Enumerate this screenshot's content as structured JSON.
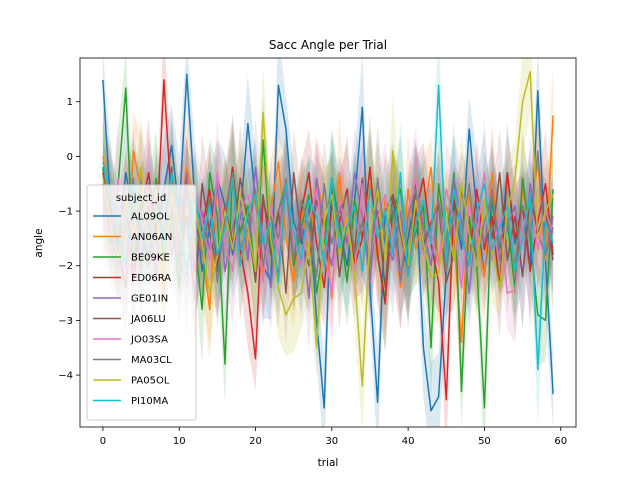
{
  "chart_data": {
    "type": "line",
    "title": "Sacc Angle per Trial",
    "xlabel": "trial",
    "ylabel": "angle",
    "xlim": [
      -3,
      62
    ],
    "ylim": [
      -4.95,
      1.8
    ],
    "xticks": [
      0,
      10,
      20,
      30,
      40,
      50,
      60
    ],
    "yticks": [
      -4,
      -3,
      -2,
      -1,
      0,
      1
    ],
    "grid": false,
    "legend": {
      "title": "subject_id",
      "placement": "center-left"
    },
    "confidence_bands": true,
    "series": [
      {
        "name": "AL09OL",
        "color": "#1f77b4",
        "values": [
          1.4,
          -0.9,
          -1.6,
          -0.3,
          -1.1,
          -2.0,
          -0.5,
          -1.4,
          -0.6,
          0.2,
          -1.0,
          1.5,
          -0.7,
          -2.1,
          -1.3,
          -0.4,
          -0.9,
          -1.8,
          -1.1,
          0.6,
          -0.8,
          -2.0,
          -2.3,
          1.3,
          0.5,
          -1.2,
          -1.6,
          -0.9,
          -3.0,
          -4.6,
          -0.4,
          -1.3,
          -2.0,
          -0.8,
          0.9,
          -2.4,
          -4.5,
          -1.0,
          -0.7,
          -2.2,
          -1.5,
          -0.6,
          -3.5,
          -4.65,
          -4.4,
          -2.1,
          -0.9,
          -1.7,
          0.5,
          -1.0,
          -2.2,
          -0.8,
          -1.8,
          -0.3,
          -1.6,
          -0.9,
          -2.0,
          1.2,
          -1.9,
          -4.35
        ]
      },
      {
        "name": "AN06AN",
        "color": "#ff7f0e",
        "values": [
          0.0,
          -0.8,
          -1.3,
          -2.1,
          0.1,
          -0.6,
          -1.8,
          -1.1,
          -2.5,
          -0.4,
          -1.2,
          -0.2,
          -0.9,
          -1.7,
          -2.8,
          -0.5,
          -1.3,
          -0.2,
          -2.0,
          -1.4,
          -0.7,
          -2.2,
          -1.0,
          -0.1,
          -1.5,
          -2.3,
          -0.9,
          -1.8,
          -0.4,
          -1.1,
          -2.6,
          -0.3,
          -1.6,
          -1.0,
          -2.1,
          -0.5,
          -1.9,
          -0.8,
          -1.3,
          -2.4,
          -0.6,
          -1.7,
          -1.1,
          -0.2,
          -2.0,
          -0.9,
          -1.5,
          -3.4,
          -0.7,
          -1.4,
          -2.2,
          -0.3,
          -1.8,
          -1.0,
          -2.5,
          -0.6,
          -1.2,
          -0.1,
          -1.9,
          0.75
        ]
      },
      {
        "name": "BE09KE",
        "color": "#2ca02c",
        "values": [
          -0.2,
          -1.6,
          -0.5,
          1.25,
          -2.0,
          -0.8,
          -1.3,
          -0.4,
          -1.9,
          -1.0,
          -2.4,
          -0.6,
          -1.5,
          -2.8,
          -0.3,
          -1.1,
          -3.8,
          -0.2,
          -1.4,
          -0.9,
          -2.2,
          0.3,
          -1.7,
          -1.0,
          -0.5,
          -2.0,
          -1.3,
          -0.7,
          -2.5,
          -1.6,
          -0.4,
          -1.2,
          -2.3,
          -0.8,
          -1.5,
          -0.2,
          -1.8,
          -2.6,
          -1.0,
          -0.6,
          -1.9,
          -1.4,
          -0.9,
          -3.5,
          -0.5,
          -1.6,
          -0.3,
          -4.3,
          -1.1,
          -2.0,
          -4.6,
          -0.7,
          -1.7,
          -1.2,
          -2.4,
          -0.4,
          -1.5,
          -2.9,
          -3.0,
          -0.6
        ]
      },
      {
        "name": "ED06RA",
        "color": "#d62728",
        "values": [
          -0.5,
          -1.2,
          -1.8,
          -0.7,
          -2.3,
          -1.0,
          -0.3,
          -1.5,
          1.4,
          -0.9,
          -1.6,
          -0.4,
          -2.1,
          -1.3,
          -0.6,
          -2.0,
          -1.1,
          -0.2,
          -1.7,
          -2.5,
          -3.7,
          -0.8,
          -1.4,
          -2.2,
          -0.5,
          -1.9,
          -1.0,
          -0.3,
          -1.6,
          -2.4,
          -0.9,
          -1.2,
          -0.6,
          -2.0,
          -1.5,
          -0.2,
          -1.8,
          -2.7,
          -0.7,
          -1.3,
          -2.1,
          -1.0,
          -0.4,
          -1.6,
          -2.3,
          -4.45,
          -0.8,
          -1.4,
          -2.0,
          -0.6,
          -1.7,
          -1.1,
          -2.4,
          -0.3,
          -1.5,
          -0.9,
          -2.1,
          -1.2,
          -0.5,
          -1.8
        ]
      },
      {
        "name": "GE01IN",
        "color": "#9467bd",
        "values": [
          -0.7,
          -1.4,
          -2.0,
          -0.9,
          -1.6,
          -0.4,
          -1.1,
          -2.2,
          -0.6,
          -1.8,
          -1.2,
          -0.3,
          -2.5,
          -1.0,
          -1.7,
          -0.5,
          -2.1,
          -1.3,
          -0.8,
          -1.9,
          -0.2,
          -1.5,
          -2.4,
          -1.0,
          -0.6,
          -1.8,
          -1.2,
          -2.6,
          -0.4,
          -1.4,
          -2.0,
          -0.9,
          -1.6,
          -0.3,
          -1.1,
          -2.3,
          -0.7,
          -1.5,
          -1.9,
          -1.0,
          -2.2,
          -0.5,
          -1.3,
          -2.0,
          -0.8,
          -1.7,
          -0.4,
          -1.2,
          -2.5,
          -1.0,
          -1.6,
          -0.6,
          -1.9,
          -1.3,
          -0.9,
          -2.2,
          -0.5,
          -1.4,
          -1.8,
          -1.1
        ]
      },
      {
        "name": "JA06LU",
        "color": "#8c564b",
        "values": [
          -0.3,
          -1.0,
          -1.7,
          -2.4,
          -0.6,
          -1.3,
          -2.0,
          -0.8,
          -1.5,
          -0.2,
          -1.9,
          -1.1,
          -2.6,
          -0.5,
          -1.4,
          -2.1,
          -0.9,
          -1.6,
          -0.4,
          -1.2,
          -2.3,
          -0.7,
          -1.8,
          -1.0,
          -2.5,
          -0.3,
          -1.5,
          -2.0,
          -0.8,
          -1.3,
          -0.6,
          -2.2,
          -1.1,
          -1.7,
          -0.4,
          -1.9,
          -1.0,
          -2.4,
          -0.7,
          -1.4,
          -2.1,
          -0.5,
          -1.6,
          -1.2,
          -0.9,
          -2.3,
          -1.8,
          -0.6,
          -1.3,
          -2.0,
          -0.8,
          -1.5,
          -0.3,
          -1.9,
          -1.1,
          -2.2,
          -0.7,
          -1.4,
          -1.0,
          -1.9
        ]
      },
      {
        "name": "JO03SA",
        "color": "#e377c2",
        "values": [
          -0.9,
          -1.5,
          -0.4,
          -2.2,
          -1.1,
          -1.8,
          -0.6,
          -2.0,
          -1.3,
          -0.8,
          -1.7,
          -2.4,
          -0.5,
          -1.2,
          -1.9,
          -0.3,
          -1.6,
          -2.1,
          -1.0,
          -0.7,
          -1.4,
          -2.3,
          -0.9,
          -1.8,
          -0.4,
          -1.5,
          -2.0,
          -1.2,
          -0.6,
          -1.7,
          -2.5,
          -0.8,
          -1.3,
          -2.1,
          -0.5,
          -1.9,
          -1.1,
          -0.7,
          -1.6,
          -2.2,
          -1.0,
          -0.4,
          -1.8,
          -1.4,
          -2.0,
          -0.6,
          -1.2,
          -2.4,
          -0.9,
          -1.5,
          -0.3,
          -1.9,
          -1.1,
          -2.5,
          -2.45,
          -1.3,
          -0.8,
          -1.7,
          -1.0,
          -1.4
        ]
      },
      {
        "name": "MA03CL",
        "color": "#7f7f7f",
        "values": [
          -1.1,
          -0.6,
          -1.9,
          -1.3,
          -0.4,
          -2.1,
          -0.9,
          -1.6,
          -0.7,
          -1.4,
          -2.0,
          -0.5,
          -1.2,
          -1.8,
          -0.8,
          -2.3,
          -1.0,
          -0.3,
          -1.7,
          -1.3,
          -0.6,
          -2.0,
          -1.1,
          -1.5,
          -0.4,
          -1.9,
          -0.8,
          -1.3,
          -2.2,
          -0.5,
          -1.6,
          -1.0,
          -0.7,
          -1.8,
          -1.2,
          -2.0,
          -0.4,
          -1.5,
          -0.9,
          -2.3,
          -1.1,
          -0.6,
          -1.7,
          -1.3,
          -0.8,
          -2.1,
          -1.0,
          -1.5,
          -0.5,
          -1.9,
          -1.2,
          -0.7,
          -1.6,
          -1.1,
          -2.0,
          -0.9,
          -1.4,
          0.1,
          -1.8,
          -1.3
        ]
      },
      {
        "name": "PA05OL",
        "color": "#bcbd22",
        "values": [
          -0.4,
          -1.2,
          -1.9,
          -0.8,
          -1.5,
          -0.2,
          -1.7,
          -1.0,
          -2.3,
          -0.6,
          -1.4,
          -2.0,
          -0.9,
          -1.6,
          -2.5,
          -1.8,
          -1.0,
          -1.7,
          -0.7,
          -1.3,
          -2.1,
          0.8,
          -1.5,
          -2.4,
          -2.9,
          -2.6,
          -2.5,
          -1.6,
          -3.5,
          -1.2,
          -0.7,
          -1.8,
          -1.1,
          -2.2,
          -4.2,
          -1.4,
          -0.6,
          -1.9,
          0.1,
          -1.3,
          -2.0,
          -0.8,
          -1.6,
          -2.2,
          -2.15,
          -1.1,
          -1.9,
          -0.5,
          -1.4,
          -2.0,
          -0.8,
          -1.7,
          -2.4,
          -1.0,
          -0.4,
          1.0,
          1.55,
          -1.5,
          -1.0,
          -0.7
        ]
      },
      {
        "name": "PI10MA",
        "color": "#17becf",
        "values": [
          -0.1,
          -0.7,
          -1.4,
          -2.0,
          -0.5,
          -1.2,
          -1.8,
          -0.9,
          -1.6,
          -0.3,
          -1.1,
          -2.2,
          -0.6,
          -1.5,
          -0.9,
          -1.8,
          -1.3,
          -0.4,
          -2.0,
          -1.0,
          -0.7,
          -1.6,
          -1.2,
          -2.3,
          -0.5,
          -1.4,
          -1.9,
          -0.8,
          -1.1,
          -2.0,
          -0.4,
          -1.7,
          -1.3,
          -0.9,
          -2.1,
          -0.6,
          -1.5,
          -1.0,
          -1.8,
          -0.3,
          -2.2,
          -1.2,
          -0.8,
          -1.6,
          1.3,
          -1.9,
          -0.6,
          -1.4,
          -2.0,
          -1.0,
          -0.5,
          -1.7,
          -1.3,
          -0.9,
          -2.1,
          -1.5,
          -0.7,
          -3.9,
          -1.2,
          -1.6
        ]
      }
    ]
  }
}
